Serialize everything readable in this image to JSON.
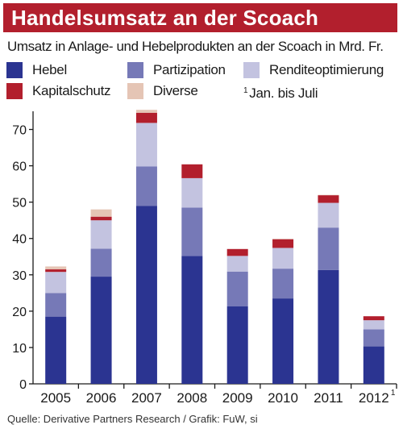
{
  "header": {
    "title": "Handelsumsatz an der Scoach",
    "subtitle": "Umsatz in Anlage- und Hebelprodukten an der Scoach in Mrd. Fr."
  },
  "legend": {
    "items": [
      {
        "label": "Hebel",
        "color": "#2b3491"
      },
      {
        "label": "Partizipation",
        "color": "#7679b7"
      },
      {
        "label": "Renditeoptimierung",
        "color": "#c3c3e0"
      },
      {
        "label": "Kapitalschutz",
        "color": "#b21f2d"
      },
      {
        "label": "Diverse",
        "color": "#e5c5b5"
      }
    ],
    "footnote_marker": "1",
    "footnote_text": "Jan. bis Juli"
  },
  "source": "Quelle: Derivative Partners Research / Grafik: FuW, si",
  "chart_data": {
    "type": "bar",
    "stacked": true,
    "title": "Handelsumsatz an der Scoach",
    "subtitle": "Umsatz in Anlage- und Hebelprodukten an der Scoach in Mrd. Fr.",
    "categories": [
      "2005",
      "2006",
      "2007",
      "2008",
      "2009",
      "2010",
      "2011",
      "2012"
    ],
    "category_footnotes": [
      "",
      "",
      "",
      "",
      "",
      "",
      "",
      "1"
    ],
    "series": [
      {
        "name": "Hebel",
        "values": [
          18.5,
          29.5,
          49,
          35.2,
          21.3,
          23.5,
          31.3,
          10.3
        ]
      },
      {
        "name": "Partizipation",
        "values": [
          6.5,
          7.7,
          10.8,
          13.3,
          9.6,
          8.2,
          11.7,
          4.7
        ]
      },
      {
        "name": "Renditeoptimierung",
        "values": [
          5.8,
          7.8,
          12,
          8.1,
          4.3,
          5.7,
          6.8,
          2.5
        ]
      },
      {
        "name": "Kapitalschutz",
        "values": [
          0.7,
          1.0,
          2.8,
          3.8,
          1.9,
          2.4,
          2.1,
          1.1
        ]
      },
      {
        "name": "Diverse",
        "values": [
          0.8,
          2.0,
          0.8,
          0,
          0,
          0.1,
          0.1,
          0
        ]
      }
    ],
    "y_ticks": [
      0,
      10,
      20,
      30,
      40,
      50,
      60,
      70
    ],
    "ylim": [
      0,
      75
    ],
    "xlabel": "",
    "ylabel": "",
    "grid": false,
    "legend_position": "top"
  }
}
